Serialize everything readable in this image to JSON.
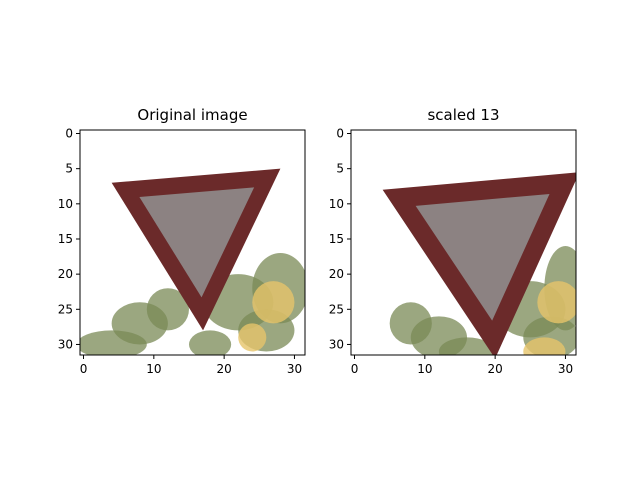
{
  "figure": {
    "background": "#ffffff"
  },
  "chart_data": [
    {
      "type": "image",
      "title": "Original image",
      "xlim": [
        -0.5,
        31.5
      ],
      "ylim": [
        31.5,
        -0.5
      ],
      "xticks": [
        0,
        10,
        20,
        30
      ],
      "yticks": [
        0,
        5,
        10,
        15,
        20,
        25,
        30
      ],
      "image_size": [
        32,
        32
      ],
      "content": "yield-sign",
      "colors": {
        "border": "#6b2a2a",
        "inner": "#8c8282",
        "foliage": "#7a8a55",
        "highlight": "#e6c46a",
        "background": "#ffffff"
      },
      "triangle_vertices": [
        [
          4,
          7
        ],
        [
          28,
          5
        ],
        [
          17,
          28
        ]
      ]
    },
    {
      "type": "image",
      "title": "scaled 13",
      "xlim": [
        -0.5,
        31.5
      ],
      "ylim": [
        31.5,
        -0.5
      ],
      "xticks": [
        0,
        10,
        20,
        30
      ],
      "yticks": [
        0,
        5,
        10,
        15,
        20,
        25,
        30
      ],
      "image_size": [
        32,
        32
      ],
      "content": "yield-sign",
      "colors": {
        "border": "#6b2a2a",
        "inner": "#8c8282",
        "foliage": "#7a8a55",
        "highlight": "#e6c46a",
        "background": "#ffffff"
      },
      "triangle_vertices": [
        [
          4,
          8
        ],
        [
          32,
          5.5
        ],
        [
          20,
          32
        ]
      ]
    }
  ]
}
